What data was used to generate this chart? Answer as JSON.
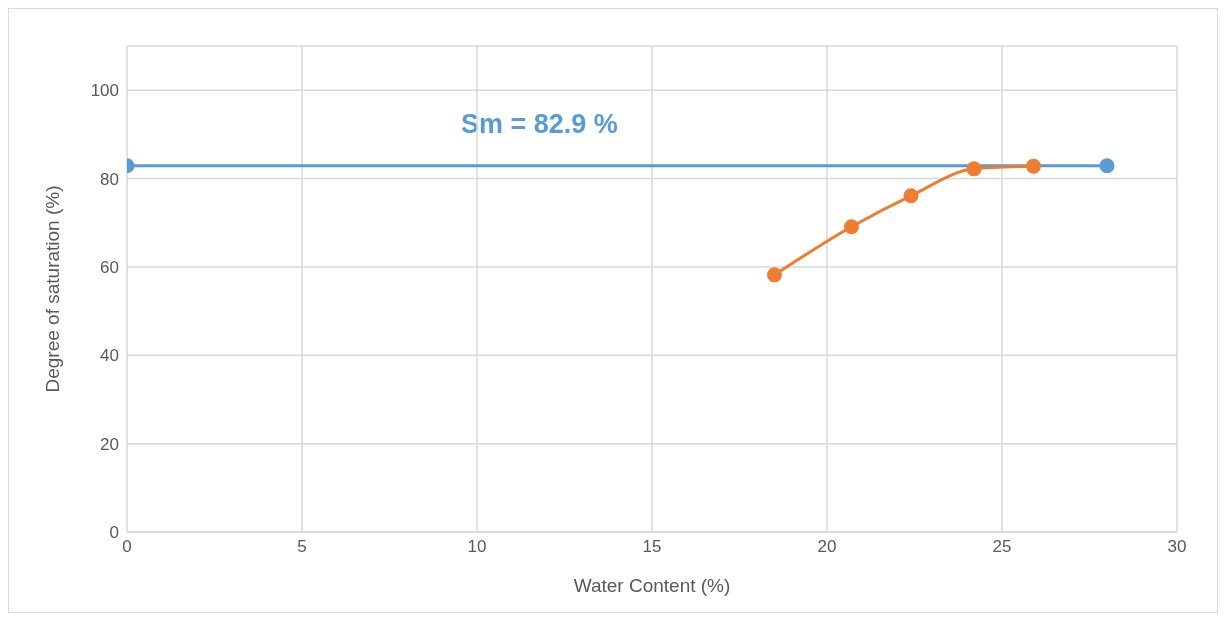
{
  "chart_data": {
    "type": "line",
    "xlabel": "Water Content (%)",
    "ylabel": "Degree of saturation (%)",
    "xlim": [
      0,
      30
    ],
    "xticks": [
      0,
      5,
      10,
      15,
      20,
      25,
      30
    ],
    "ylim": [
      0,
      110
    ],
    "yticks": [
      0,
      20,
      40,
      60,
      80,
      100
    ],
    "grid": true,
    "marker": "circle",
    "line_style": "solid",
    "series": [
      {
        "color": "#5b9bd5",
        "x": [
          0,
          28
        ],
        "values": [
          82.9,
          82.9
        ]
      },
      {
        "color": "#ed7d31",
        "x": [
          18.5,
          20.7,
          22.4,
          24.2,
          25.9
        ],
        "values": [
          58.2,
          69.1,
          76.1,
          82.2,
          82.8
        ]
      }
    ],
    "annotations": [
      "Sm = 82.9 %"
    ]
  }
}
